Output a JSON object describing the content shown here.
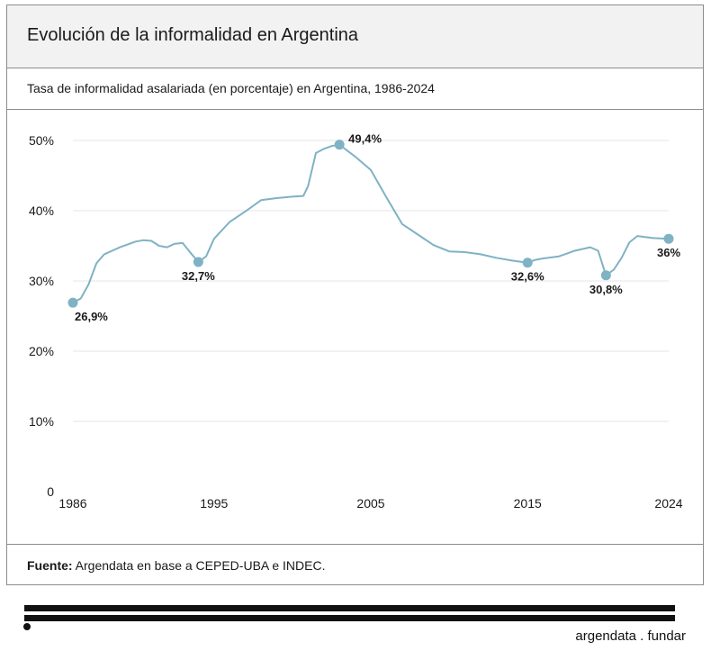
{
  "header": {
    "title": "Evolución de la informalidad en Argentina",
    "subtitle": "Tasa de informalidad asalariada (en porcentaje) en Argentina, 1986-2024"
  },
  "footer": {
    "source_label": "Fuente:",
    "source_text": " Argendata en base a CEPED-UBA e INDEC.",
    "brand": "argendata . fundar"
  },
  "colors": {
    "line": "#7fb2c4",
    "grid": "#e6e6e6",
    "text": "#1a1a1a"
  },
  "chart_data": {
    "type": "line",
    "title": "Evolución de la informalidad en Argentina",
    "subtitle": "Tasa de informalidad asalariada (en porcentaje) en Argentina, 1986-2024",
    "xlabel": "",
    "ylabel": "",
    "xlim": [
      1986,
      2024
    ],
    "ylim": [
      0,
      50
    ],
    "x_ticks": [
      1986,
      1995,
      2005,
      2015,
      2024
    ],
    "y_ticks": [
      0,
      10,
      20,
      30,
      40,
      50
    ],
    "y_tick_labels": [
      "0",
      "10%",
      "20%",
      "30%",
      "40%",
      "50%"
    ],
    "grid": true,
    "series": [
      {
        "x": [
          1986,
          1986.5,
          1987,
          1987.5,
          1988,
          1989,
          1990,
          1990.5,
          1991,
          1991.5,
          1992,
          1992.5,
          1993,
          1993.5,
          1994,
          1994.5,
          1995,
          1995.5,
          1996,
          1997,
          1998,
          1999,
          2000,
          2000.7,
          2001,
          2001.5,
          2002,
          2002.5,
          2003,
          2004,
          2005,
          2006,
          2007,
          2008,
          2009,
          2010,
          2011,
          2012,
          2013,
          2014,
          2015,
          2015.5,
          2016,
          2017,
          2018,
          2019,
          2019.5,
          2020,
          2020.5,
          2021,
          2021.5,
          2022,
          2023,
          2024
        ],
        "y": [
          26.9,
          27.5,
          29.5,
          32.5,
          33.8,
          34.8,
          35.6,
          35.8,
          35.7,
          35.0,
          34.8,
          35.3,
          35.4,
          34.0,
          32.7,
          33.5,
          36.0,
          37.2,
          38.4,
          39.9,
          41.5,
          41.8,
          42.0,
          42.1,
          43.5,
          48.2,
          48.8,
          49.2,
          49.4,
          47.7,
          45.8,
          41.9,
          38.1,
          36.6,
          35.1,
          34.2,
          34.1,
          33.8,
          33.3,
          32.9,
          32.6,
          33.0,
          33.2,
          33.5,
          34.3,
          34.8,
          34.3,
          30.8,
          31.6,
          33.3,
          35.5,
          36.4,
          36.1,
          36.0
        ]
      }
    ],
    "annotations": [
      {
        "x": 1986,
        "y": 26.9,
        "label": "26,9%",
        "pos": "below-right"
      },
      {
        "x": 1994,
        "y": 32.7,
        "label": "32,7%",
        "pos": "below"
      },
      {
        "x": 2003,
        "y": 49.4,
        "label": "49,4%",
        "pos": "right"
      },
      {
        "x": 2015,
        "y": 32.6,
        "label": "32,6%",
        "pos": "below"
      },
      {
        "x": 2020,
        "y": 30.8,
        "label": "30,8%",
        "pos": "below"
      },
      {
        "x": 2024,
        "y": 36.0,
        "label": "36%",
        "pos": "below"
      }
    ]
  }
}
